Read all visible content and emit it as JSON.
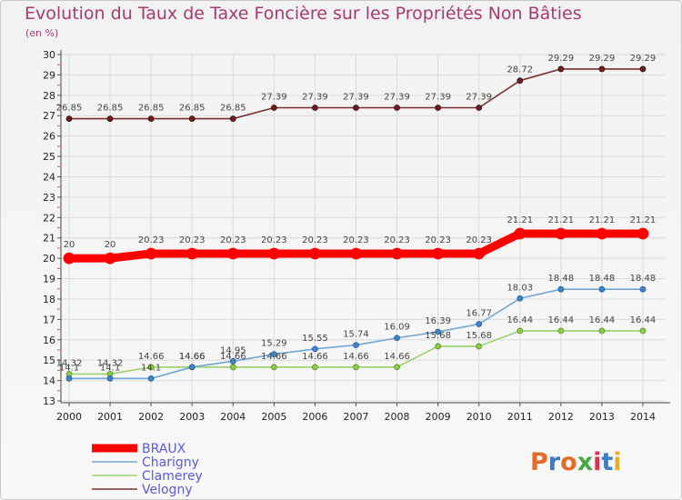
{
  "chart_data": {
    "type": "line",
    "title": "Evolution du Taux de Taxe Foncière sur les Propriétés Non Bâties",
    "subtitle": "(en %)",
    "x": [
      "2000",
      "2001",
      "2002",
      "2003",
      "2004",
      "2005",
      "2006",
      "2007",
      "2008",
      "2009",
      "2010",
      "2011",
      "2012",
      "2013",
      "2014"
    ],
    "ylim": [
      13,
      30
    ],
    "yticks": [
      13,
      14,
      15,
      16,
      17,
      18,
      19,
      20,
      21,
      22,
      23,
      24,
      25,
      26,
      27,
      28,
      29,
      30
    ],
    "grid": true,
    "legend_position": "bottom-left",
    "series": [
      {
        "name": "BRAUX",
        "color": "#ff0000",
        "values": [
          20,
          20,
          20.23,
          20.23,
          20.23,
          20.23,
          20.23,
          20.23,
          20.23,
          20.23,
          20.23,
          21.21,
          21.21,
          21.21,
          21.21
        ],
        "labels": [
          "20",
          "20",
          "20.23",
          "20.23",
          "20.23",
          "20.23",
          "20.23",
          "20.23",
          "20.23",
          "20.23",
          "20.23",
          "21.21",
          "21.21",
          "21.21",
          "21.21"
        ]
      },
      {
        "name": "Charigny",
        "color": "#6ea6d6",
        "values": [
          14.1,
          14.1,
          14.1,
          14.66,
          14.95,
          15.29,
          15.55,
          15.74,
          16.09,
          16.39,
          16.77,
          18.03,
          18.48,
          18.48,
          18.48
        ],
        "labels": [
          "14.1",
          "14.1",
          "14.1",
          "14.66",
          "14.95",
          "15.29",
          "15.55",
          "15.74",
          "16.09",
          "16.39",
          "16.77",
          "18.03",
          "18.48",
          "18.48",
          "18.48"
        ]
      },
      {
        "name": "Clamerey",
        "color": "#9ad26a",
        "values": [
          14.32,
          14.32,
          14.66,
          14.66,
          14.66,
          14.66,
          14.66,
          14.66,
          14.66,
          15.68,
          15.68,
          16.44,
          16.44,
          16.44,
          16.44
        ],
        "labels": [
          "14.32",
          "14.32",
          "14.66",
          "14.66",
          "14.66",
          "14.66",
          "14.66",
          "14.66",
          "14.66",
          "15.68",
          "15.68",
          "16.44",
          "16.44",
          "16.44",
          "16.44"
        ]
      },
      {
        "name": "Velogny",
        "color": "#7a2e2e",
        "values": [
          26.85,
          26.85,
          26.85,
          26.85,
          26.85,
          27.39,
          27.39,
          27.39,
          27.39,
          27.39,
          27.39,
          28.72,
          29.29,
          29.29,
          29.29
        ],
        "labels": [
          "26.85",
          "26.85",
          "26.85",
          "26.85",
          "26.85",
          "27.39",
          "27.39",
          "27.39",
          "27.39",
          "27.39",
          "27.39",
          "28.72",
          "29.29",
          "29.29",
          "29.29"
        ]
      }
    ]
  },
  "logo": {
    "text": "Proxiti",
    "colors": [
      "#e36b2b",
      "#3d7bc4",
      "#e36b2b",
      "#4aa84a",
      "#d9324f",
      "#3d7bc4",
      "#e3b02b"
    ]
  }
}
